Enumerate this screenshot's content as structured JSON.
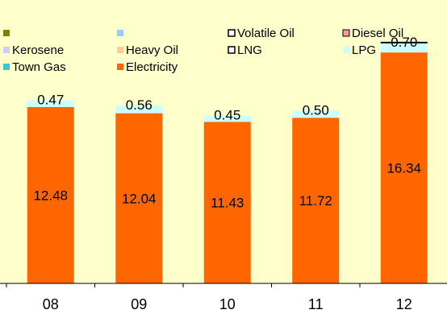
{
  "chart_data": {
    "type": "bar",
    "stacked": true,
    "categories": [
      "08",
      "09",
      "10",
      "11",
      "12"
    ],
    "series": [
      {
        "name": "Electricity",
        "color": "#ff6600",
        "values": [
          12.48,
          12.04,
          11.43,
          11.72,
          16.34
        ]
      },
      {
        "name": "LPG",
        "color": "#ccffff",
        "values": [
          0.47,
          0.56,
          0.45,
          0.5,
          0.7
        ]
      }
    ],
    "legend": [
      {
        "name": "",
        "color": "#808000",
        "style": "filled"
      },
      {
        "name": "",
        "color": "#99ccff",
        "style": "filled"
      },
      {
        "name": "Volatile Oil",
        "color": "#000000",
        "style": "outline"
      },
      {
        "name": "Diesel Oil",
        "color": "#ff9999",
        "style": "outlined-fill"
      },
      {
        "name": "Kerosene",
        "color": "#ccccff",
        "style": "filled"
      },
      {
        "name": "Heavy Oil",
        "color": "#ffcc99",
        "style": "filled"
      },
      {
        "name": "LNG",
        "color": "#000000",
        "style": "outline"
      },
      {
        "name": "LPG",
        "color": "#ccffff",
        "style": "filled"
      },
      {
        "name": "Town Gas",
        "color": "#33cccc",
        "style": "filled"
      },
      {
        "name": "Electricity",
        "color": "#ff6600",
        "style": "filled"
      }
    ],
    "legend_position": "top",
    "ylim": [
      0,
      18
    ],
    "grid": false,
    "plot_background": "#ffffcc"
  }
}
